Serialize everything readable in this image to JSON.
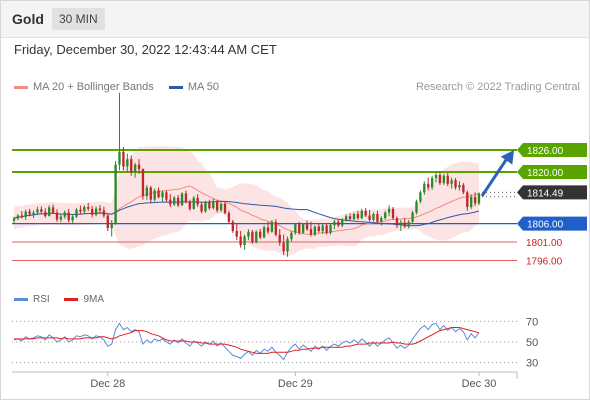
{
  "header": {
    "symbol": "Gold",
    "timeframe": "30 MIN",
    "datetime": "Friday, December 30, 2022 12:43:44 AM CET",
    "source": "Research © 2022 Trading Central"
  },
  "legend": {
    "bollinger": {
      "label": "MA 20 + Bollinger Bands",
      "color": "#f28b82"
    },
    "ma50": {
      "label": "MA 50",
      "color": "#2b5aa8"
    }
  },
  "rsi_legend": {
    "rsi": {
      "label": "RSI",
      "color": "#5b8bd9"
    },
    "ma": {
      "label": "9MA",
      "color": "#e02020"
    }
  },
  "colors": {
    "up": "#2a8a2a",
    "down": "#c0262c",
    "resistance": "#5aa400",
    "pivot": "#1f5fc8",
    "support": "#e06060",
    "current": "#333333",
    "band_fill": "#fbd9d9",
    "arrow": "#2c63b6"
  },
  "chart_data": [
    {
      "type": "candlestick",
      "ylim": [
        1785,
        1842
      ],
      "x_labels": [
        "Dec 28",
        "Dec 29",
        "Dec 30"
      ],
      "current_price": "1814.49",
      "levels": [
        {
          "label": "1826.00",
          "value": 1826.0,
          "kind": "resistance"
        },
        {
          "label": "1820.00",
          "value": 1820.0,
          "kind": "resistance"
        },
        {
          "label": "1806.00",
          "value": 1806.0,
          "kind": "pivot"
        },
        {
          "label": "1801.00",
          "value": 1801.0,
          "kind": "support"
        },
        {
          "label": "1796.00",
          "value": 1796.0,
          "kind": "support"
        }
      ],
      "arrow": {
        "from": 1813.5,
        "to": 1826.0
      },
      "candles": [
        [
          1806.8,
          1807.9,
          1806.0,
          1807.4
        ],
        [
          1807.4,
          1808.6,
          1806.9,
          1808.2
        ],
        [
          1808.2,
          1809.4,
          1807.4,
          1807.8
        ],
        [
          1807.8,
          1809.8,
          1807.0,
          1809.3
        ],
        [
          1809.3,
          1810.0,
          1808.0,
          1808.5
        ],
        [
          1808.5,
          1809.6,
          1807.5,
          1809.0
        ],
        [
          1809.0,
          1810.6,
          1808.3,
          1809.9
        ],
        [
          1809.9,
          1810.7,
          1808.8,
          1809.2
        ],
        [
          1809.2,
          1810.2,
          1807.6,
          1808.1
        ],
        [
          1808.1,
          1811.0,
          1807.9,
          1810.4
        ],
        [
          1810.4,
          1811.2,
          1808.7,
          1809.0
        ],
        [
          1809.0,
          1809.9,
          1806.5,
          1807.1
        ],
        [
          1807.1,
          1808.5,
          1806.4,
          1807.9
        ],
        [
          1807.9,
          1809.6,
          1807.3,
          1809.0
        ],
        [
          1809.0,
          1810.0,
          1806.3,
          1806.9
        ],
        [
          1806.9,
          1808.5,
          1806.2,
          1807.9
        ],
        [
          1807.9,
          1810.2,
          1807.5,
          1809.8
        ],
        [
          1809.8,
          1810.9,
          1808.5,
          1809.3
        ],
        [
          1809.3,
          1811.0,
          1808.6,
          1810.5
        ],
        [
          1810.5,
          1811.6,
          1809.4,
          1810.0
        ],
        [
          1810.0,
          1810.8,
          1807.7,
          1808.4
        ],
        [
          1808.4,
          1810.7,
          1808.0,
          1810.1
        ],
        [
          1810.1,
          1811.0,
          1809.0,
          1809.6
        ],
        [
          1809.6,
          1810.6,
          1807.6,
          1808.2
        ],
        [
          1808.2,
          1808.8,
          1804.0,
          1804.8
        ],
        [
          1804.8,
          1807.0,
          1802.5,
          1806.0
        ],
        [
          1806.0,
          1823.0,
          1805.7,
          1822.0
        ],
        [
          1822.0,
          1841.5,
          1820.5,
          1825.5
        ],
        [
          1825.5,
          1826.8,
          1820.5,
          1821.5
        ],
        [
          1821.5,
          1825.0,
          1820.0,
          1823.5
        ],
        [
          1823.5,
          1824.5,
          1819.0,
          1820.0
        ],
        [
          1820.0,
          1822.5,
          1818.5,
          1822.0
        ],
        [
          1822.0,
          1823.5,
          1819.5,
          1820.8
        ],
        [
          1820.8,
          1821.0,
          1812.5,
          1813.5
        ],
        [
          1813.5,
          1816.5,
          1812.5,
          1815.8
        ],
        [
          1815.8,
          1816.2,
          1811.5,
          1812.5
        ],
        [
          1812.5,
          1815.5,
          1812.0,
          1815.0
        ],
        [
          1815.0,
          1815.8,
          1812.8,
          1813.2
        ],
        [
          1813.2,
          1815.0,
          1812.0,
          1814.5
        ],
        [
          1814.5,
          1815.0,
          1811.8,
          1812.5
        ],
        [
          1812.5,
          1814.0,
          1810.5,
          1811.2
        ],
        [
          1811.2,
          1813.5,
          1810.8,
          1813.0
        ],
        [
          1813.0,
          1813.8,
          1810.5,
          1811.0
        ],
        [
          1811.0,
          1814.5,
          1810.8,
          1814.2
        ],
        [
          1814.2,
          1815.0,
          1811.5,
          1811.8
        ],
        [
          1811.8,
          1812.5,
          1809.5,
          1810.0
        ],
        [
          1810.0,
          1813.5,
          1809.8,
          1813.0
        ],
        [
          1813.0,
          1814.0,
          1810.5,
          1811.2
        ],
        [
          1811.2,
          1812.0,
          1808.8,
          1809.3
        ],
        [
          1809.3,
          1812.2,
          1809.0,
          1811.8
        ],
        [
          1811.8,
          1812.5,
          1809.7,
          1810.2
        ],
        [
          1810.2,
          1812.8,
          1809.8,
          1812.0
        ],
        [
          1812.0,
          1812.5,
          1809.0,
          1809.6
        ],
        [
          1809.6,
          1811.8,
          1809.2,
          1811.4
        ],
        [
          1811.4,
          1812.0,
          1808.5,
          1808.9
        ],
        [
          1808.9,
          1809.5,
          1806.0,
          1806.5
        ],
        [
          1806.5,
          1807.0,
          1803.5,
          1804.0
        ],
        [
          1804.0,
          1806.0,
          1801.5,
          1802.5
        ],
        [
          1802.5,
          1804.0,
          1799.5,
          1800.2
        ],
        [
          1800.2,
          1803.0,
          1799.0,
          1802.5
        ],
        [
          1802.5,
          1804.5,
          1801.5,
          1803.8
        ],
        [
          1803.8,
          1804.3,
          1800.5,
          1801.0
        ],
        [
          1801.0,
          1804.2,
          1800.6,
          1803.8
        ],
        [
          1803.8,
          1804.6,
          1801.8,
          1802.3
        ],
        [
          1802.3,
          1805.5,
          1802.0,
          1805.0
        ],
        [
          1805.0,
          1806.5,
          1803.2,
          1803.8
        ],
        [
          1803.8,
          1807.0,
          1803.5,
          1806.5
        ],
        [
          1806.5,
          1807.2,
          1802.5,
          1803.0
        ],
        [
          1803.0,
          1804.5,
          1800.0,
          1800.8
        ],
        [
          1800.8,
          1803.0,
          1797.5,
          1798.5
        ],
        [
          1798.5,
          1802.5,
          1797.0,
          1801.8
        ],
        [
          1801.8,
          1804.0,
          1801.2,
          1803.5
        ],
        [
          1803.5,
          1806.2,
          1803.0,
          1805.8
        ],
        [
          1805.8,
          1806.5,
          1803.0,
          1803.5
        ],
        [
          1803.5,
          1806.2,
          1803.2,
          1805.8
        ],
        [
          1805.8,
          1806.8,
          1804.0,
          1804.5
        ],
        [
          1804.5,
          1806.5,
          1802.5,
          1803.0
        ],
        [
          1803.0,
          1805.5,
          1802.6,
          1805.2
        ],
        [
          1805.2,
          1806.2,
          1803.5,
          1804.0
        ],
        [
          1804.0,
          1806.0,
          1803.2,
          1805.5
        ],
        [
          1805.5,
          1806.0,
          1803.0,
          1803.5
        ],
        [
          1803.5,
          1806.0,
          1803.0,
          1805.6
        ],
        [
          1805.6,
          1807.0,
          1804.5,
          1806.5
        ],
        [
          1806.5,
          1807.0,
          1805.0,
          1805.5
        ],
        [
          1805.5,
          1807.5,
          1805.0,
          1807.0
        ],
        [
          1807.0,
          1808.5,
          1806.5,
          1808.0
        ],
        [
          1808.0,
          1808.8,
          1806.8,
          1807.2
        ],
        [
          1807.2,
          1809.0,
          1806.9,
          1808.6
        ],
        [
          1808.6,
          1809.5,
          1807.0,
          1807.5
        ],
        [
          1807.5,
          1810.0,
          1807.2,
          1809.5
        ],
        [
          1809.5,
          1810.2,
          1807.8,
          1808.2
        ],
        [
          1808.2,
          1809.7,
          1806.5,
          1807.0
        ],
        [
          1807.0,
          1809.0,
          1806.5,
          1808.6
        ],
        [
          1808.6,
          1809.5,
          1806.0,
          1806.5
        ],
        [
          1806.5,
          1808.0,
          1805.5,
          1807.5
        ],
        [
          1807.5,
          1809.5,
          1807.0,
          1809.0
        ],
        [
          1809.0,
          1811.0,
          1808.0,
          1810.0
        ],
        [
          1810.0,
          1810.5,
          1807.0,
          1807.5
        ],
        [
          1807.5,
          1808.0,
          1804.8,
          1805.5
        ],
        [
          1805.5,
          1807.0,
          1804.0,
          1806.3
        ],
        [
          1806.3,
          1807.5,
          1804.8,
          1805.2
        ],
        [
          1805.2,
          1807.0,
          1804.7,
          1806.5
        ],
        [
          1806.5,
          1809.5,
          1806.0,
          1809.0
        ],
        [
          1809.0,
          1812.5,
          1808.5,
          1812.0
        ],
        [
          1812.0,
          1815.0,
          1811.5,
          1814.5
        ],
        [
          1814.5,
          1817.5,
          1813.8,
          1816.8
        ],
        [
          1816.8,
          1818.5,
          1815.0,
          1815.8
        ],
        [
          1815.8,
          1819.0,
          1815.2,
          1818.4
        ],
        [
          1818.4,
          1820.0,
          1817.2,
          1819.2
        ],
        [
          1819.2,
          1820.2,
          1816.5,
          1817.0
        ],
        [
          1817.0,
          1819.5,
          1816.5,
          1819.0
        ],
        [
          1819.0,
          1819.8,
          1816.2,
          1816.8
        ],
        [
          1816.8,
          1818.5,
          1815.5,
          1817.8
        ],
        [
          1817.8,
          1818.4,
          1815.2,
          1815.8
        ],
        [
          1815.8,
          1817.5,
          1815.0,
          1816.5
        ],
        [
          1816.5,
          1817.0,
          1814.0,
          1814.5
        ],
        [
          1814.5,
          1815.0,
          1809.5,
          1810.5
        ],
        [
          1810.5,
          1814.0,
          1810.0,
          1813.2
        ],
        [
          1813.2,
          1814.5,
          1810.8,
          1811.5
        ],
        [
          1811.5,
          1814.5,
          1811.0,
          1814.2
        ]
      ]
    },
    {
      "type": "line",
      "title": "RSI",
      "ylim": [
        20,
        80
      ],
      "y_ticks": [
        70,
        50,
        30
      ],
      "series": [
        {
          "name": "RSI",
          "values": [
            52,
            53,
            51,
            55,
            53,
            54,
            56,
            55,
            52,
            57,
            54,
            50,
            52,
            55,
            50,
            52,
            56,
            55,
            57,
            56,
            53,
            56,
            55,
            52,
            46,
            48,
            62,
            68,
            62,
            64,
            60,
            62,
            60,
            48,
            52,
            49,
            53,
            51,
            53,
            50,
            48,
            52,
            49,
            53,
            49,
            46,
            51,
            49,
            46,
            50,
            48,
            51,
            46,
            49,
            45,
            41,
            37,
            36,
            34,
            38,
            41,
            37,
            42,
            39,
            43,
            41,
            45,
            40,
            37,
            33,
            40,
            45,
            48,
            43,
            47,
            44,
            41,
            46,
            43,
            46,
            42,
            46,
            48,
            46,
            49,
            51,
            49,
            52,
            49,
            53,
            50,
            46,
            50,
            46,
            49,
            52,
            54,
            49,
            44,
            47,
            44,
            47,
            53,
            58,
            63,
            66,
            62,
            67,
            68,
            62,
            66,
            61,
            64,
            60,
            63,
            60,
            52,
            58,
            54,
            59
          ]
        },
        {
          "name": "9MA",
          "values": [
            53,
            53,
            53,
            53,
            53,
            53,
            54,
            54,
            54,
            54,
            54,
            54,
            53,
            54,
            53,
            53,
            53,
            53,
            54,
            54,
            54,
            54,
            55,
            55,
            54,
            53,
            54,
            56,
            57,
            58,
            59,
            61,
            61,
            61,
            60,
            58,
            57,
            56,
            54,
            52,
            51,
            51,
            51,
            51,
            51,
            50,
            50,
            50,
            49,
            49,
            48,
            48,
            48,
            48,
            48,
            47,
            46,
            45,
            43,
            42,
            41,
            40,
            39,
            39,
            39,
            39,
            40,
            40,
            40,
            40,
            40,
            41,
            42,
            42,
            43,
            43,
            44,
            44,
            44,
            45,
            45,
            45,
            45,
            45,
            45,
            46,
            46,
            47,
            48,
            48,
            48,
            49,
            49,
            49,
            49,
            49,
            49,
            50,
            49,
            49,
            48,
            48,
            48,
            49,
            51,
            53,
            55,
            57,
            59,
            61,
            62,
            63,
            64,
            64,
            64,
            63,
            62,
            61,
            60,
            59
          ]
        }
      ]
    }
  ]
}
